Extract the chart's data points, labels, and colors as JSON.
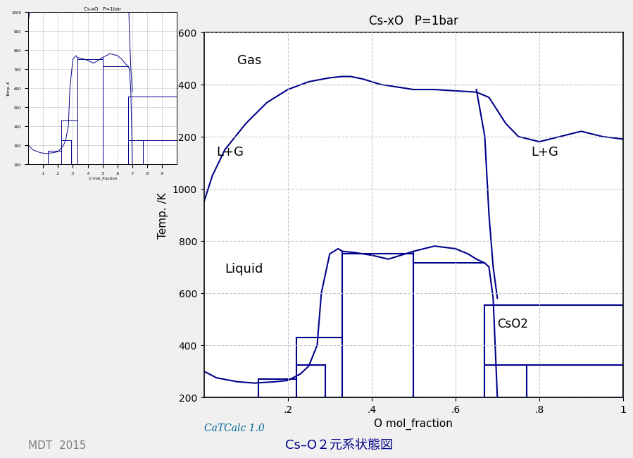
{
  "title_main": "Cs-xO   P=1bar",
  "xlabel": "O mol_fraction",
  "ylabel": "Temp. /K",
  "xlim": [
    0,
    1
  ],
  "ylim": [
    200,
    1600
  ],
  "xticks": [
    0.2,
    0.4,
    0.6,
    0.8,
    1.0
  ],
  "xticklabels": [
    ".2",
    ".4",
    ".6",
    ".8",
    "1"
  ],
  "yticks": [
    200,
    400,
    600,
    800,
    1000,
    1200,
    1400,
    1600
  ],
  "line_color": "#00008B",
  "grid_color": "#C0C0C0",
  "bg_color": "#FFFFFF",
  "label_Gas": "Gas",
  "label_LG1": "L+G",
  "label_LG2": "L+G",
  "label_Liquid": "Liquid",
  "label_CsO2": "CsO2",
  "catcalc_text": "CaTCalc 1.0",
  "bottom_title": "Cs–O２元系状態図",
  "mdt_text": "MDT  2015",
  "inset_title": "Cs-xO   P=1bar",
  "inset_xlabel": "O mol_fraction",
  "inset_ylabel": "Temp.,K"
}
